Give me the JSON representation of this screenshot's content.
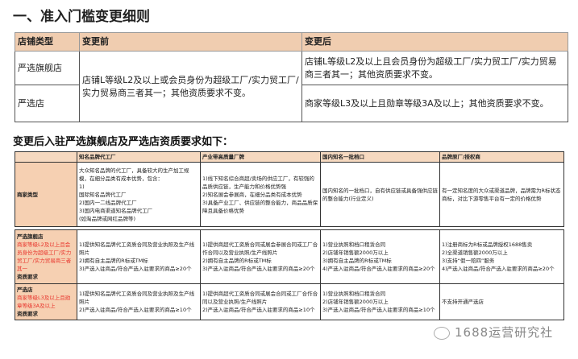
{
  "title": "一、准入门槛变更细则",
  "table1": {
    "headers": [
      "店铺类型",
      "变更前",
      "变更后"
    ],
    "rows": [
      {
        "type": "严选旗舰店",
        "after": "店铺L等级L2及以上且会员身份为超级工厂/实力贸工厂/实力贸易商三者其一；其他资质要求不变。"
      },
      {
        "type": "严选店",
        "after": "商家等级L3及以上且勋章等级3A及以上；其他资质要求不变。"
      }
    ],
    "before_merged": "店铺L等级L2及以上或会员身份为超级工厂/实力贸工厂/实力贸易商三者其一；其他资质要求不变。"
  },
  "subtitle": "变更后入驻严选旗舰店及严选店资质要求如下：",
  "table2": {
    "headers": [
      "",
      "知名品牌代工厂",
      "产业带高质量厂牌",
      "国内知名一批档口",
      "品牌原厂/授权商"
    ],
    "merchant_type": {
      "label": "商家类型",
      "cells": [
        "大众知名品牌的代工厂，具备较大的生产加工规模，在细分品类有成本优势，包含：\n1)\n国际知名品牌代工厂\n2)国内一二线品牌代工厂\n3)国内电商渠道知名品牌代工厂\n(如淘品牌或网红品牌等)",
        "1)线下知名综合商超/卖场的供应工厂，有较强的品质供应链，生产能力和价格优势强\n2)知名展会参展商，在细分品类有成本优势\n3)具备产业工厂、供应链的整合能力，商品品质保障且具备价格优势",
        "国内知名的一批档口，自有供应链或具备强供应链的整合能力(行业定义)",
        "有一定知名度的大众或渠道品牌，品牌需为R标状态商标，对比下游零售平台有一定的价格优势"
      ]
    },
    "flagship": {
      "label": "严选旗舰店",
      "condition": "商家等级L2及以上且会员身份为超级工厂/实力贸工厂/实力贸易商三者其一",
      "req": "资质要求",
      "cells": [
        "1)提供知名品牌代工资质合同及营业执照及生产线照片\n2)拥有自主品牌的R标或TM标\n3)严选入驻商品/符合严选入驻要求的商品≥20个",
        "1)提供商超代工资质合同或展会参展合同或工厂合作合同以及营业执照/生产线照片\n2)拥有自主品牌的R标或TM标\n3)严选入驻商品/符合严选入驻要求的商品≥20个",
        "1)营业执照和档口租赁合同\n2)店铺年销售额2000万以上\n3)拥有自主品牌的R标或TM标\n4)严选入驻商品/符合严选入驻要求的商品≥20个",
        "1)注册商标为R标或品牌授权1688售卖\n2)全渠道销售额2000万以上\n3)支持“假一赔四”服务\n4)严选入驻商品/符合严选入驻要求的商品≥20个"
      ]
    },
    "store": {
      "label": "严选店",
      "condition": "商家等级L3及以上且勋章等级3A及以上",
      "req": "资质要求",
      "cells": [
        "1)提供知名品牌代工资质合同及营业执照及生产线照片\n2)严选入驻商品/符合严选入驻要求的商品≥10个",
        "1)提供商超代工资质合同或展会合同或工厂合作合同以及营业执照/生产线照片\n2)严选入驻商品/符合严选入驻要求的商品≥10个",
        "1)营业执照和档口租赁合同\n2)店铺年销售额2000万以上\n3)严选入驻商品/符合严选入驻要求的商品≥10个",
        "不支持开通严选店"
      ]
    }
  },
  "watermark": "1688运营研究社"
}
